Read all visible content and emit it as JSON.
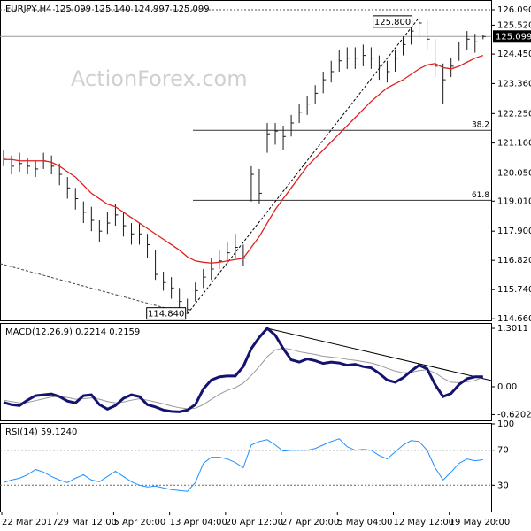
{
  "watermark": "ActionForex.com",
  "chart_data": [
    {
      "type": "ohlc",
      "title": "EURJPY,H4  125.099 125.140 124.997 125.099",
      "categories": [
        "22 Mar 2017",
        null,
        null,
        null,
        null,
        null,
        null,
        "29 Mar 12:00",
        null,
        null,
        null,
        null,
        null,
        null,
        "5 Apr 20:00",
        null,
        null,
        null,
        null,
        null,
        null,
        "13 Apr 04:00",
        null,
        null,
        null,
        null,
        null,
        null,
        "20 Apr 12:00",
        null,
        null,
        null,
        null,
        null,
        null,
        "27 Apr 20:00",
        null,
        null,
        null,
        null,
        null,
        null,
        "5 May 04:00",
        null,
        null,
        null,
        null,
        null,
        null,
        "12 May 12:00",
        null,
        null,
        null,
        null,
        null,
        null,
        "19 May 20:00",
        null,
        null,
        null,
        null
      ],
      "high": [
        120.9,
        120.7,
        120.8,
        120.6,
        120.5,
        120.8,
        120.7,
        120.4,
        119.9,
        119.5,
        119.0,
        118.8,
        118.3,
        118.6,
        118.9,
        118.6,
        118.2,
        118.2,
        117.8,
        117.2,
        116.4,
        116.2,
        115.8,
        115.4,
        116.0,
        116.5,
        116.9,
        117.2,
        117.5,
        117.8,
        117.4,
        120.3,
        120.2,
        121.9,
        121.9,
        121.8,
        122.2,
        122.6,
        122.9,
        123.3,
        123.8,
        124.2,
        124.6,
        124.7,
        124.7,
        124.8,
        124.7,
        124.4,
        124.2,
        124.6,
        125.1,
        125.6,
        125.8,
        125.7,
        125.0,
        124.1,
        124.3,
        124.9,
        125.3,
        125.2,
        125.14
      ],
      "low": [
        120.3,
        120.0,
        120.1,
        120.0,
        119.9,
        120.2,
        120.0,
        119.6,
        119.1,
        118.7,
        118.2,
        117.9,
        117.5,
        117.8,
        118.1,
        117.7,
        117.4,
        117.4,
        116.9,
        116.1,
        115.7,
        115.4,
        115.0,
        114.84,
        115.3,
        115.8,
        116.1,
        116.5,
        116.7,
        116.9,
        116.6,
        119.0,
        118.9,
        120.8,
        121.1,
        120.9,
        121.4,
        121.9,
        122.2,
        122.6,
        123.0,
        123.4,
        123.8,
        123.9,
        123.9,
        124.0,
        123.9,
        123.5,
        123.4,
        123.8,
        124.4,
        124.8,
        125.1,
        124.6,
        123.6,
        122.6,
        123.6,
        124.2,
        124.6,
        124.5,
        124.997
      ],
      "close": [
        120.6,
        120.3,
        120.4,
        120.3,
        120.2,
        120.5,
        120.3,
        120.0,
        119.5,
        119.1,
        118.6,
        118.3,
        117.9,
        118.2,
        118.5,
        118.1,
        117.8,
        117.8,
        117.4,
        116.3,
        116.0,
        115.8,
        115.3,
        115.0,
        115.7,
        116.2,
        116.5,
        116.8,
        117.1,
        117.3,
        116.9,
        120.0,
        119.3,
        121.5,
        121.6,
        121.4,
        121.9,
        122.3,
        122.6,
        123.0,
        123.5,
        123.8,
        124.2,
        124.3,
        124.3,
        124.4,
        124.3,
        124.0,
        123.8,
        124.3,
        124.8,
        125.3,
        125.6,
        125.0,
        124.0,
        123.5,
        124.0,
        124.6,
        125.0,
        124.9,
        125.099
      ],
      "bar_color": "#1a1a1a",
      "series": [
        {
          "color": "#e02020",
          "values": [
            120.55,
            120.55,
            120.5,
            120.5,
            120.5,
            120.5,
            120.45,
            120.3,
            120.1,
            119.9,
            119.6,
            119.3,
            119.1,
            118.9,
            118.8,
            118.6,
            118.4,
            118.2,
            118.0,
            117.8,
            117.6,
            117.4,
            117.2,
            116.95,
            116.8,
            116.75,
            116.72,
            116.75,
            116.8,
            116.85,
            116.9,
            117.3,
            117.7,
            118.2,
            118.7,
            119.1,
            119.5,
            119.9,
            120.3,
            120.6,
            120.9,
            121.2,
            121.5,
            121.8,
            122.1,
            122.4,
            122.7,
            122.95,
            123.2,
            123.35,
            123.5,
            123.7,
            123.9,
            124.05,
            124.1,
            123.95,
            123.9,
            124.0,
            124.15,
            124.3,
            124.4
          ]
        }
      ],
      "swing_high": {
        "value": 125.8,
        "label": "125.800"
      },
      "swing_low": {
        "value": 114.84,
        "label": "114.840"
      },
      "trendline_start": 116.7,
      "fib_levels": [
        {
          "ratio": 38.2,
          "price": 121.63
        },
        {
          "ratio": 61.8,
          "price": 119.04
        }
      ],
      "dotted_level": 126.09,
      "last": {
        "value": 125.099,
        "label": "125.099"
      },
      "ylim": [
        114.6,
        126.45
      ],
      "yticks": [
        {
          "value": 126.09,
          "label": "126.090"
        },
        {
          "value": 125.52,
          "label": "125.520"
        },
        {
          "value": 124.45,
          "label": "124.450"
        },
        {
          "value": 123.36,
          "label": "123.360"
        },
        {
          "value": 122.25,
          "label": "122.250"
        },
        {
          "value": 121.16,
          "label": "121.160"
        },
        {
          "value": 120.05,
          "label": "120.050"
        },
        {
          "value": 119.01,
          "label": "119.010"
        },
        {
          "value": 117.9,
          "label": "117.900"
        },
        {
          "value": 116.82,
          "label": "116.820"
        },
        {
          "value": 115.74,
          "label": "115.740"
        },
        {
          "value": 114.66,
          "label": "114.660"
        }
      ]
    },
    {
      "type": "line",
      "title": "MACD(12,26,9) 0.2214 0.2159",
      "series": [
        {
          "color": "#141470",
          "width": 3,
          "values": [
            -0.35,
            -0.4,
            -0.42,
            -0.3,
            -0.2,
            -0.18,
            -0.16,
            -0.22,
            -0.32,
            -0.36,
            -0.2,
            -0.18,
            -0.4,
            -0.5,
            -0.42,
            -0.26,
            -0.18,
            -0.22,
            -0.4,
            -0.45,
            -0.52,
            -0.55,
            -0.56,
            -0.52,
            -0.4,
            -0.05,
            0.15,
            0.22,
            0.24,
            0.24,
            0.45,
            0.85,
            1.1,
            1.3011,
            1.15,
            0.85,
            0.6,
            0.55,
            0.62,
            0.58,
            0.52,
            0.55,
            0.53,
            0.48,
            0.5,
            0.45,
            0.42,
            0.3,
            0.15,
            0.1,
            0.2,
            0.35,
            0.48,
            0.4,
            0.05,
            -0.22,
            -0.15,
            0.05,
            0.18,
            0.2214,
            0.2214
          ]
        },
        {
          "color": "#999999",
          "width": 1,
          "values": [
            -0.3,
            -0.33,
            -0.36,
            -0.35,
            -0.31,
            -0.27,
            -0.23,
            -0.22,
            -0.24,
            -0.28,
            -0.27,
            -0.25,
            -0.28,
            -0.33,
            -0.36,
            -0.34,
            -0.3,
            -0.27,
            -0.3,
            -0.34,
            -0.38,
            -0.43,
            -0.47,
            -0.49,
            -0.48,
            -0.4,
            -0.28,
            -0.17,
            -0.08,
            -0.02,
            0.08,
            0.25,
            0.45,
            0.67,
            0.82,
            0.86,
            0.83,
            0.78,
            0.75,
            0.72,
            0.68,
            0.66,
            0.64,
            0.61,
            0.59,
            0.56,
            0.53,
            0.48,
            0.41,
            0.35,
            0.31,
            0.32,
            0.36,
            0.38,
            0.31,
            0.19,
            0.1,
            0.09,
            0.11,
            0.14,
            0.2159
          ]
        }
      ],
      "trendline_end": 0.14,
      "ylim": [
        -0.75,
        1.42
      ],
      "yticks": [
        1.3011,
        {
          "value": 0,
          "label": "0.00"
        },
        -0.6202
      ]
    },
    {
      "type": "line",
      "title": "RSI(14) 59.1240",
      "series": [
        {
          "color": "#1e90ff",
          "width": 1,
          "values": [
            33,
            36,
            38,
            42,
            48,
            45,
            40,
            36,
            33,
            38,
            42,
            36,
            34,
            40,
            46,
            40,
            34,
            30,
            28,
            29,
            27,
            25,
            24,
            23,
            33,
            55,
            62,
            62,
            60,
            56,
            50,
            76,
            80,
            82,
            76,
            69,
            70,
            70,
            70,
            72,
            76,
            80,
            83,
            74,
            70,
            71,
            70,
            64,
            60,
            68,
            76,
            81,
            80,
            70,
            50,
            36,
            45,
            55,
            60,
            58,
            59.124
          ]
        }
      ],
      "levels": [
        70,
        30
      ],
      "ylim": [
        0,
        101
      ],
      "yticks": [
        100,
        70,
        30
      ]
    }
  ]
}
